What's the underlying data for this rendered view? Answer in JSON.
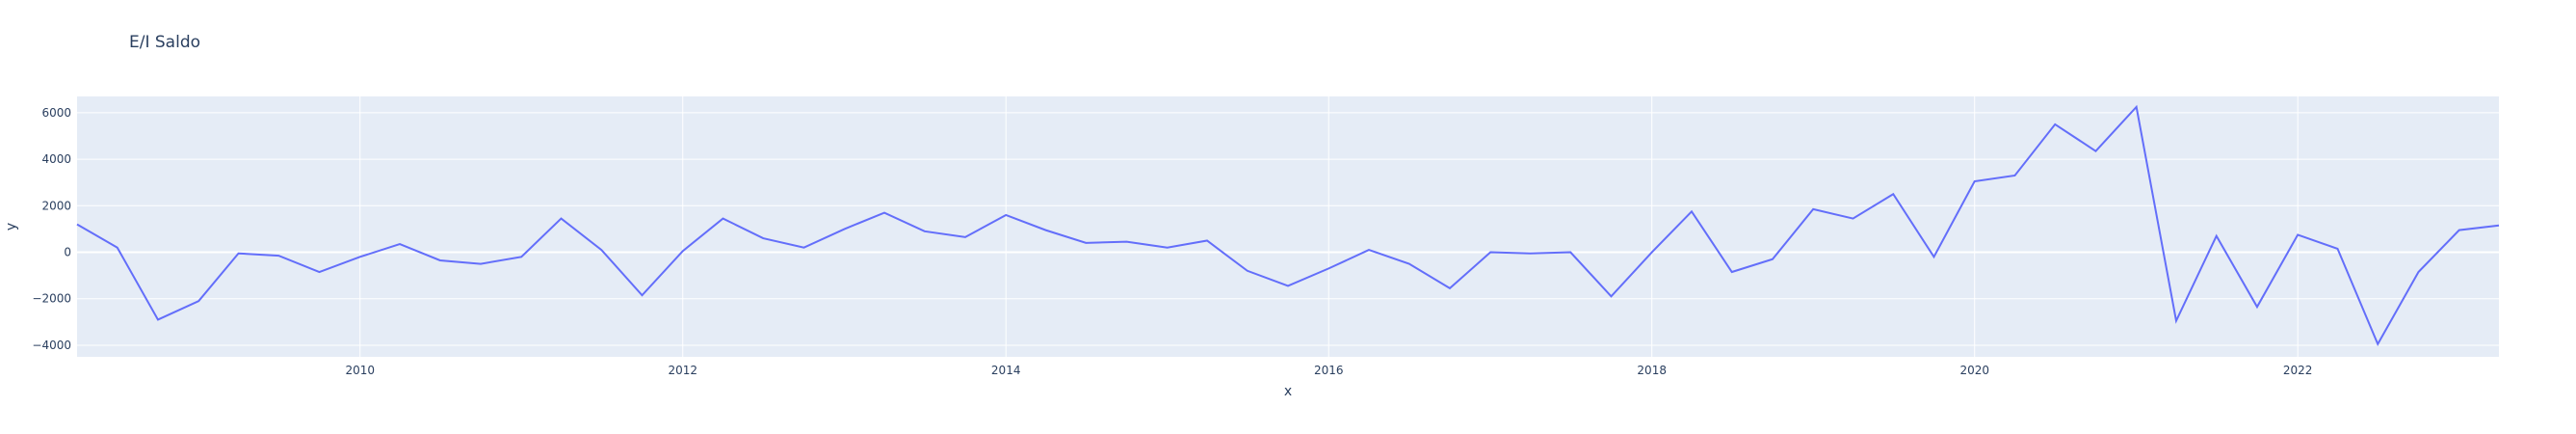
{
  "chart_data": {
    "type": "line",
    "title": "E/I Saldo",
    "xlabel": "x",
    "ylabel": "y",
    "xlim": [
      "2008-04-01",
      "2023-04-01"
    ],
    "ylim": [
      -4500,
      6700
    ],
    "x_ticks": [
      "2010",
      "2012",
      "2014",
      "2016",
      "2018",
      "2020",
      "2022"
    ],
    "y_ticks": [
      -4000,
      -2000,
      0,
      2000,
      4000,
      6000
    ],
    "y_tick_labels": [
      "−4000",
      "−2000",
      "0",
      "2000",
      "4000",
      "6000"
    ],
    "grid": true,
    "colors": {
      "line": "#636efa",
      "plot_bg": "#e5ecf6",
      "grid": "#ffffff",
      "text": "#2a3f5f"
    },
    "series": [
      {
        "x": [
          "2008-04-01",
          "2008-07-01",
          "2008-10-01",
          "2009-01-01",
          "2009-04-01",
          "2009-07-01",
          "2009-10-01",
          "2010-01-01",
          "2010-04-01",
          "2010-07-01",
          "2010-10-01",
          "2011-01-01",
          "2011-04-01",
          "2011-07-01",
          "2011-10-01",
          "2012-01-01",
          "2012-04-01",
          "2012-07-01",
          "2012-10-01",
          "2013-01-01",
          "2013-04-01",
          "2013-07-01",
          "2013-10-01",
          "2014-01-01",
          "2014-04-01",
          "2014-07-01",
          "2014-10-01",
          "2015-01-01",
          "2015-04-01",
          "2015-07-01",
          "2015-10-01",
          "2016-01-01",
          "2016-04-01",
          "2016-07-01",
          "2016-10-01",
          "2017-01-01",
          "2017-04-01",
          "2017-07-01",
          "2017-10-01",
          "2018-01-01",
          "2018-04-01",
          "2018-07-01",
          "2018-10-01",
          "2019-01-01",
          "2019-04-01",
          "2019-07-01",
          "2019-10-01",
          "2020-01-01",
          "2020-04-01",
          "2020-07-01",
          "2020-10-01",
          "2021-01-01",
          "2021-04-01",
          "2021-07-01",
          "2021-10-01",
          "2022-01-01",
          "2022-04-01",
          "2022-07-01",
          "2022-10-01",
          "2023-01-01",
          "2023-04-01"
        ],
        "y": [
          1200,
          200,
          -2900,
          -2100,
          -50,
          -150,
          -850,
          -200,
          350,
          -350,
          -500,
          -200,
          1450,
          100,
          -1850,
          50,
          1450,
          600,
          200,
          1000,
          1700,
          900,
          650,
          1600,
          950,
          400,
          450,
          200,
          500,
          -800,
          -1450,
          -700,
          100,
          -500,
          -1550,
          0,
          -50,
          0,
          -1900,
          0,
          1750,
          -850,
          -300,
          1850,
          1450,
          2500,
          -200,
          3050,
          3300,
          5500,
          4350,
          6250,
          -2950,
          700,
          -2350,
          750,
          150,
          -3950,
          -850,
          950,
          1150
        ]
      }
    ]
  }
}
